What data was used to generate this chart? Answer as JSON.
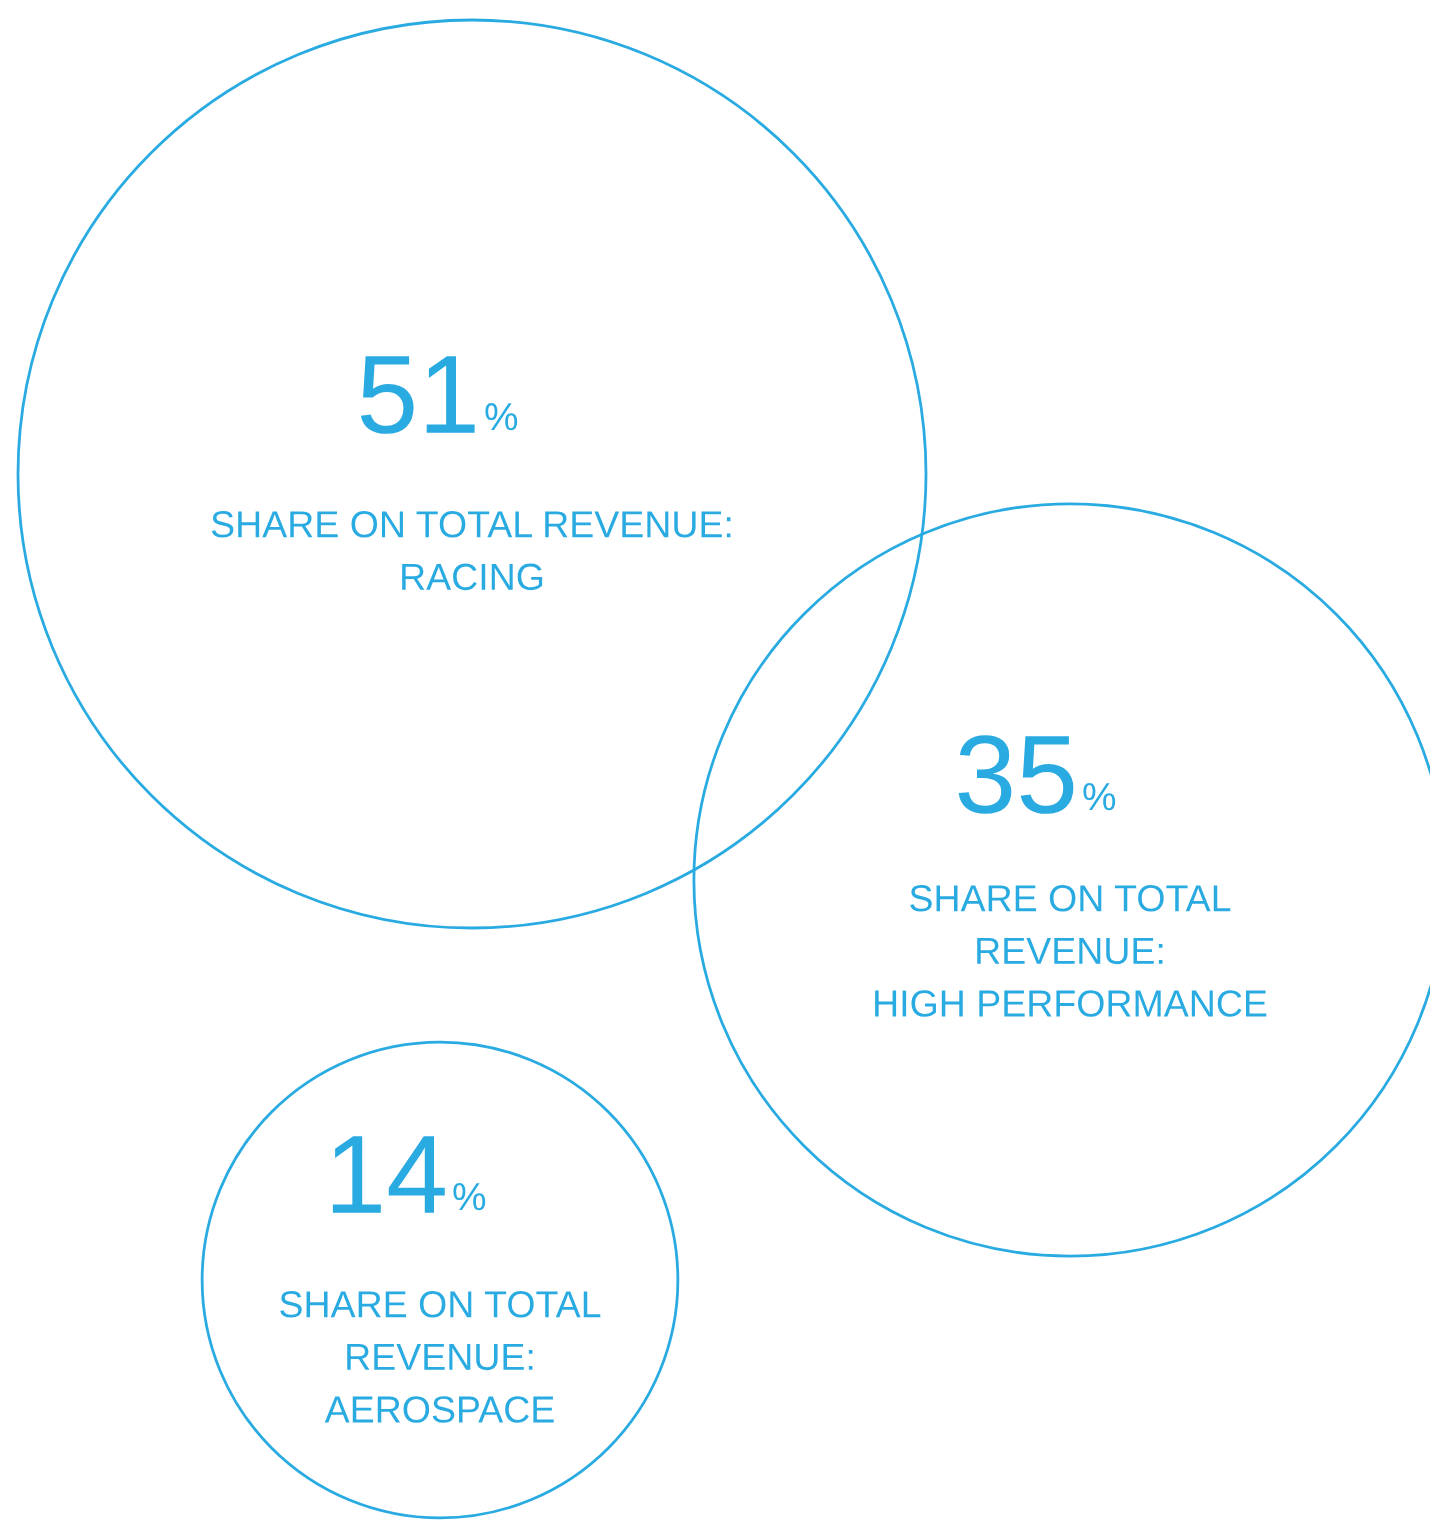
{
  "chart_data": {
    "type": "other",
    "categories": [
      "SHARE ON TOTAL REVENUE:\nRACING",
      "SHARE ON TOTAL\nREVENUE:\nHIGH PERFORMANCE",
      "SHARE ON TOTAL\nREVENUE:\nAEROSPACE"
    ],
    "values": [
      51,
      35,
      14
    ],
    "value_labels": [
      "51%",
      "35%",
      "14%"
    ],
    "color": "#29abe2"
  }
}
